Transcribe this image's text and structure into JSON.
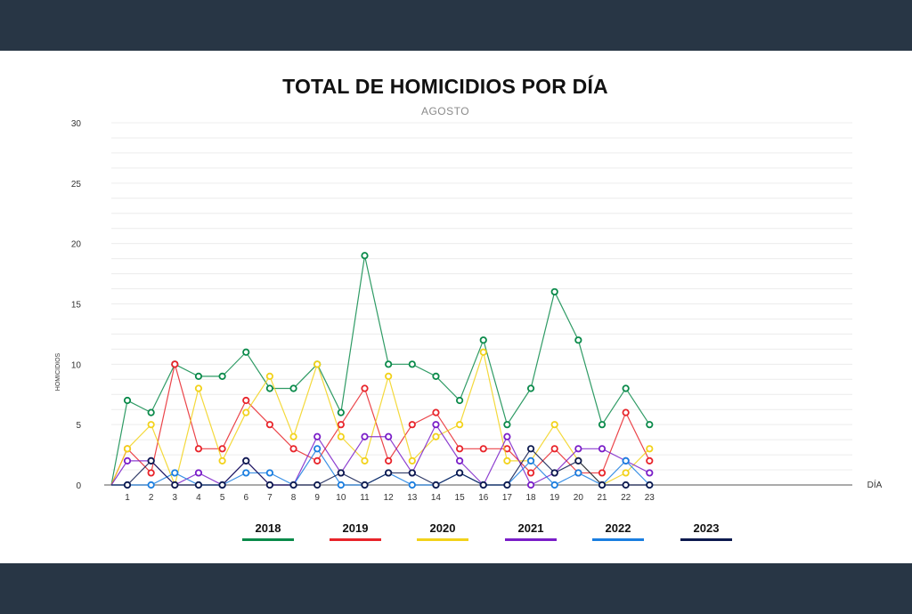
{
  "title": "TOTAL DE HOMICIDIOS POR DÍA",
  "subtitle": "AGOSTO",
  "chart_data": {
    "type": "line",
    "title": "TOTAL DE HOMICIDIOS POR DÍA",
    "subtitle": "AGOSTO",
    "xlabel": "DÍA",
    "ylabel": "HOMICIDIOS",
    "ylim": [
      0,
      30
    ],
    "yticks": [
      0,
      5,
      10,
      15,
      20,
      25,
      30
    ],
    "categories": [
      "1",
      "2",
      "3",
      "4",
      "5",
      "6",
      "7",
      "8",
      "9",
      "10",
      "11",
      "12",
      "13",
      "14",
      "15",
      "16",
      "17",
      "18",
      "19",
      "20",
      "21",
      "22",
      "23"
    ],
    "grid": true,
    "legend_position": "bottom",
    "series": [
      {
        "name": "2018",
        "color": "#0a8a4a",
        "values": [
          7,
          6,
          10,
          9,
          9,
          11,
          8,
          8,
          10,
          6,
          19,
          10,
          10,
          9,
          7,
          12,
          5,
          8,
          16,
          12,
          5,
          8,
          5
        ]
      },
      {
        "name": "2019",
        "color": "#e8242a",
        "values": [
          3,
          1,
          10,
          3,
          3,
          7,
          5,
          3,
          2,
          5,
          8,
          2,
          5,
          6,
          3,
          3,
          3,
          1,
          3,
          1,
          1,
          6,
          2
        ]
      },
      {
        "name": "2020",
        "color": "#f2d21a",
        "values": [
          3,
          5,
          0,
          8,
          2,
          6,
          9,
          4,
          10,
          4,
          2,
          9,
          2,
          4,
          5,
          11,
          2,
          2,
          5,
          2,
          0,
          1,
          3
        ]
      },
      {
        "name": "2021",
        "color": "#7a1ec8",
        "values": [
          2,
          2,
          0,
          1,
          0,
          2,
          0,
          0,
          4,
          1,
          4,
          4,
          1,
          5,
          2,
          0,
          4,
          0,
          1,
          3,
          3,
          2,
          1
        ]
      },
      {
        "name": "2022",
        "color": "#1a7ee0",
        "values": [
          0,
          0,
          1,
          0,
          0,
          1,
          1,
          0,
          3,
          0,
          0,
          1,
          0,
          0,
          1,
          0,
          0,
          2,
          0,
          1,
          0,
          2,
          0
        ]
      },
      {
        "name": "2023",
        "color": "#0d1a4f",
        "values": [
          0,
          2,
          0,
          0,
          0,
          2,
          0,
          0,
          0,
          1,
          0,
          1,
          1,
          0,
          1,
          0,
          0,
          3,
          1,
          2,
          0,
          0,
          0
        ]
      }
    ]
  }
}
